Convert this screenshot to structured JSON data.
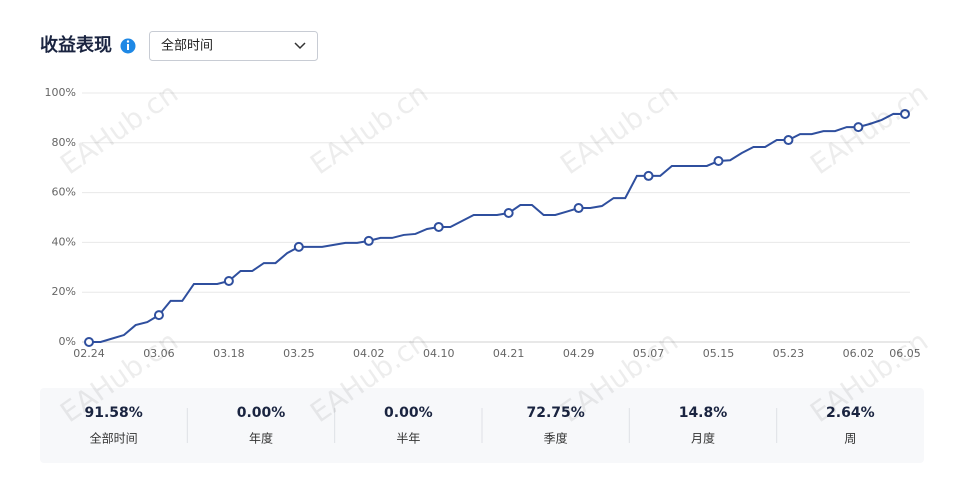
{
  "header": {
    "title": "收益表现",
    "dropdown": "全部时间"
  },
  "watermark": "EAHub.cn",
  "chart_data": {
    "type": "line",
    "color": "#2f4f9e",
    "grid": true,
    "ylim": [
      0,
      100
    ],
    "yticks": [
      {
        "value": 0,
        "label": "0%"
      },
      {
        "value": 20,
        "label": "20%"
      },
      {
        "value": 40,
        "label": "40%"
      },
      {
        "value": 60,
        "label": "60%"
      },
      {
        "value": 80,
        "label": "80%"
      },
      {
        "value": 100,
        "label": "100%"
      }
    ],
    "categories": [
      "02.24",
      null,
      null,
      null,
      null,
      null,
      "03.06",
      null,
      null,
      null,
      null,
      null,
      "03.18",
      null,
      null,
      null,
      null,
      null,
      "03.25",
      null,
      null,
      null,
      null,
      null,
      "04.02",
      null,
      null,
      null,
      null,
      null,
      "04.10",
      null,
      null,
      null,
      null,
      null,
      "04.21",
      null,
      null,
      null,
      null,
      null,
      "04.29",
      null,
      null,
      null,
      null,
      null,
      "05.07",
      null,
      null,
      null,
      null,
      null,
      "05.15",
      null,
      null,
      null,
      null,
      null,
      "05.23",
      null,
      null,
      null,
      null,
      null,
      "06.02",
      null,
      null,
      null,
      "06.05"
    ],
    "values": [
      0,
      0,
      1.4,
      2.8,
      6.8,
      8,
      10.8,
      16.5,
      16.5,
      23.3,
      23.3,
      23.3,
      24.5,
      28.5,
      28.5,
      31.7,
      31.7,
      35.7,
      38.2,
      38.2,
      38.2,
      39,
      39.8,
      39.8,
      40.6,
      41.8,
      41.8,
      43,
      43.4,
      45.4,
      46.2,
      46.2,
      48.6,
      51,
      51,
      51,
      51.8,
      55,
      55,
      51,
      51,
      52.4,
      53.8,
      53.8,
      54.6,
      57.8,
      57.8,
      66.7,
      66.7,
      66.7,
      70.7,
      70.7,
      70.7,
      70.7,
      72.7,
      73,
      75.9,
      78.3,
      78.3,
      81.1,
      81.1,
      83.5,
      83.5,
      84.7,
      84.7,
      86.3,
      86.3,
      87.6,
      89.2,
      91.6,
      91.58
    ]
  },
  "stats": [
    {
      "value": "91.58%",
      "label": "全部时间"
    },
    {
      "value": "0.00%",
      "label": "年度"
    },
    {
      "value": "0.00%",
      "label": "半年"
    },
    {
      "value": "72.75%",
      "label": "季度"
    },
    {
      "value": "14.8%",
      "label": "月度"
    },
    {
      "value": "2.64%",
      "label": "周"
    }
  ]
}
